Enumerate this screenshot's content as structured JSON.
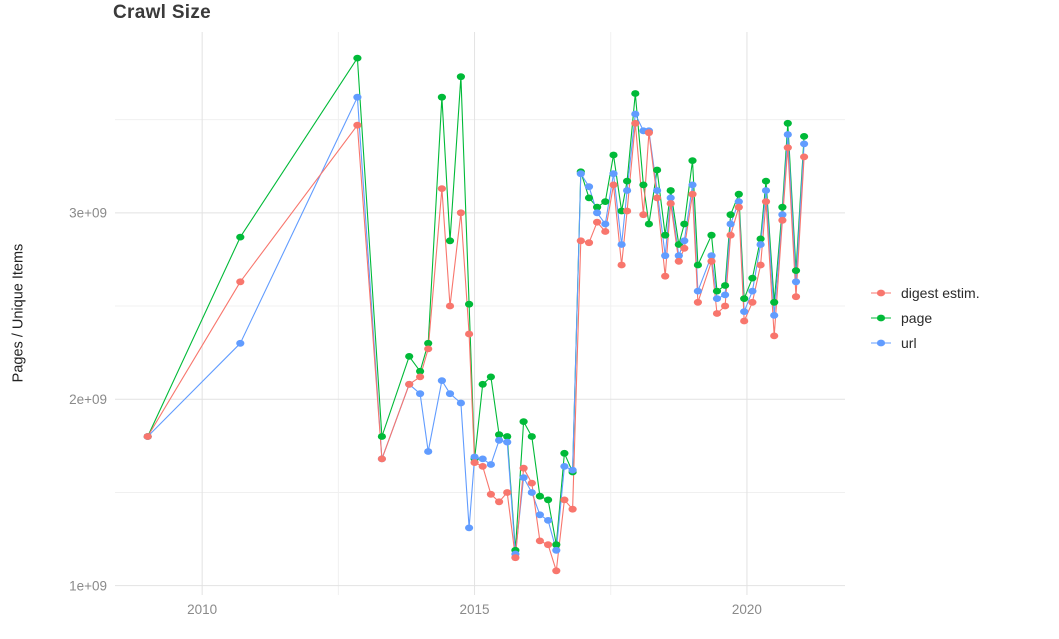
{
  "chart_data": {
    "type": "line",
    "title": "Crawl Size",
    "ylabel": "Pages / Unique Items",
    "xlabel": "",
    "grid": true,
    "legend_position": "right",
    "values_scale": "1e9",
    "xlim": [
      2008.4,
      2021.8
    ],
    "ylim": [
      0.95,
      3.97
    ],
    "x_ticks": {
      "values": [
        2010,
        2015,
        2020
      ],
      "labels": [
        "2010",
        "2015",
        "2020"
      ]
    },
    "y_ticks": {
      "values": [
        1,
        2,
        3
      ],
      "labels": [
        "1e+09",
        "2e+09",
        "3e+09"
      ]
    },
    "x_minor": [
      2012.5,
      2017.5
    ],
    "y_minor": [
      1.5,
      2.5,
      3.5
    ],
    "grid_major_color": "#e2e2e2",
    "grid_minor_color": "#f0f0f0",
    "tick_label_color": "#8a8a8a",
    "x": [
      2009.0,
      2010.7,
      2012.85,
      2013.3,
      2013.8,
      2014.0,
      2014.15,
      2014.4,
      2014.55,
      2014.75,
      2014.9,
      2015.0,
      2015.15,
      2015.3,
      2015.45,
      2015.6,
      2015.75,
      2015.9,
      2016.05,
      2016.2,
      2016.35,
      2016.5,
      2016.65,
      2016.8,
      2016.95,
      2017.1,
      2017.25,
      2017.4,
      2017.55,
      2017.7,
      2017.8,
      2017.95,
      2018.1,
      2018.2,
      2018.35,
      2018.5,
      2018.6,
      2018.75,
      2018.85,
      2019.0,
      2019.1,
      2019.35,
      2019.45,
      2019.6,
      2019.7,
      2019.85,
      2019.95,
      2020.1,
      2020.25,
      2020.35,
      2020.5,
      2020.65,
      2020.75,
      2020.9,
      2021.05
    ],
    "series": [
      {
        "name": "digest estim.",
        "color": "#F8766D",
        "values": [
          1.8,
          2.63,
          3.47,
          1.68,
          2.08,
          2.12,
          2.27,
          3.13,
          2.5,
          3.0,
          2.35,
          1.66,
          1.64,
          1.49,
          1.45,
          1.5,
          1.15,
          1.63,
          1.55,
          1.24,
          1.22,
          1.08,
          1.46,
          1.41,
          2.85,
          2.84,
          2.95,
          2.9,
          3.15,
          2.72,
          3.01,
          3.48,
          2.99,
          3.43,
          3.08,
          2.66,
          3.05,
          2.74,
          2.81,
          3.1,
          2.52,
          2.74,
          2.46,
          2.5,
          2.88,
          3.03,
          2.42,
          2.52,
          2.72,
          3.06,
          2.34,
          2.96,
          3.35,
          2.55,
          3.3
        ]
      },
      {
        "name": "page",
        "color": "#00BA38",
        "values": [
          1.8,
          2.87,
          3.83,
          1.8,
          2.23,
          2.15,
          2.3,
          3.62,
          2.85,
          3.73,
          2.51,
          1.68,
          2.08,
          2.12,
          1.81,
          1.8,
          1.19,
          1.88,
          1.8,
          1.48,
          1.46,
          1.22,
          1.71,
          1.61,
          3.22,
          3.08,
          3.03,
          3.06,
          3.31,
          3.01,
          3.17,
          3.64,
          3.15,
          2.94,
          3.23,
          2.88,
          3.12,
          2.83,
          2.94,
          3.28,
          2.72,
          2.88,
          2.58,
          2.61,
          2.99,
          3.1,
          2.54,
          2.65,
          2.86,
          3.17,
          2.52,
          3.03,
          3.48,
          2.69,
          3.41
        ]
      },
      {
        "name": "url",
        "color": "#619CFF",
        "values": [
          1.8,
          2.3,
          3.62,
          1.68,
          2.08,
          2.03,
          1.72,
          2.1,
          2.03,
          1.98,
          1.31,
          1.69,
          1.68,
          1.65,
          1.78,
          1.77,
          1.17,
          1.58,
          1.5,
          1.38,
          1.35,
          1.19,
          1.64,
          1.62,
          3.21,
          3.14,
          3.0,
          2.94,
          3.21,
          2.83,
          3.12,
          3.53,
          3.44,
          3.44,
          3.12,
          2.77,
          3.08,
          2.77,
          2.85,
          3.15,
          2.58,
          2.77,
          2.54,
          2.56,
          2.94,
          3.06,
          2.47,
          2.58,
          2.83,
          3.12,
          2.45,
          2.99,
          3.42,
          2.63,
          3.37
        ]
      }
    ]
  }
}
